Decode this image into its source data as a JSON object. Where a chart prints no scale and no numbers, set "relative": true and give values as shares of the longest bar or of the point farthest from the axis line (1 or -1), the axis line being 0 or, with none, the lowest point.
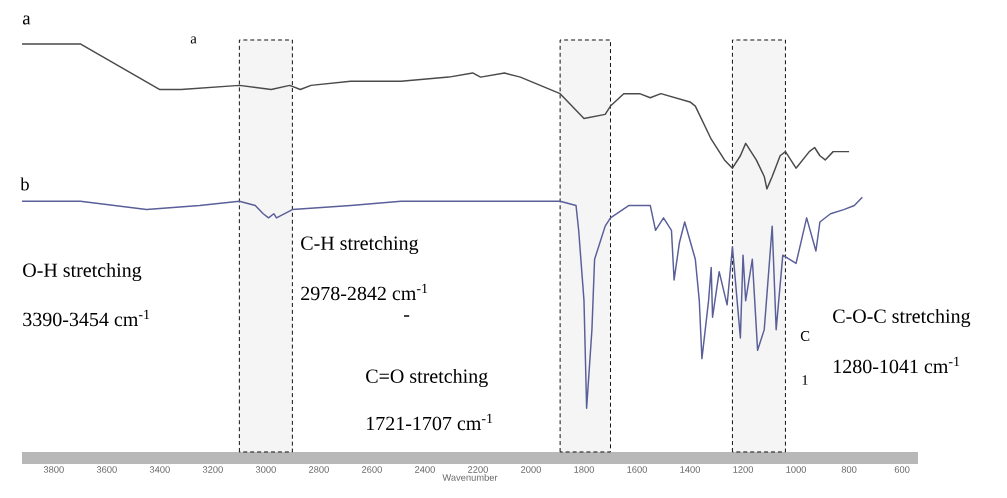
{
  "chart_data": {
    "type": "line",
    "relative": true,
    "xlabel": "Wavenumber",
    "xlim": [
      3920,
      540
    ],
    "xticks": [
      3800,
      3600,
      3400,
      3200,
      3000,
      2800,
      2600,
      2400,
      2200,
      2000,
      1800,
      1600,
      1400,
      1200,
      1000,
      800,
      600
    ],
    "series": [
      {
        "name": "a",
        "color": "#4a4a4a",
        "x": [
          3920,
          3700,
          3400,
          3320,
          3100,
          2980,
          2910,
          2870,
          2830,
          2680,
          2490,
          2310,
          2220,
          2190,
          2100,
          2040,
          1890,
          1800,
          1720,
          1700,
          1650,
          1590,
          1550,
          1510,
          1400,
          1380,
          1320,
          1270,
          1240,
          1210,
          1190,
          1180,
          1150,
          1120,
          1110,
          1090,
          1060,
          1040,
          1020,
          1000,
          950,
          930,
          910,
          890,
          860,
          820,
          800
        ],
        "values": [
          1.0,
          1.0,
          0.89,
          0.89,
          0.9,
          0.89,
          0.9,
          0.89,
          0.9,
          0.91,
          0.91,
          0.92,
          0.93,
          0.92,
          0.93,
          0.92,
          0.88,
          0.82,
          0.83,
          0.85,
          0.88,
          0.88,
          0.87,
          0.88,
          0.86,
          0.85,
          0.77,
          0.72,
          0.7,
          0.73,
          0.76,
          0.75,
          0.72,
          0.68,
          0.65,
          0.68,
          0.73,
          0.74,
          0.72,
          0.7,
          0.74,
          0.75,
          0.73,
          0.72,
          0.74,
          0.74,
          0.74
        ]
      },
      {
        "name": "b",
        "color": "#5a5f99",
        "x": [
          3920,
          3700,
          3450,
          3250,
          3100,
          3040,
          3010,
          2990,
          2970,
          2960,
          2930,
          2900,
          2680,
          2490,
          2270,
          2190,
          2040,
          1890,
          1830,
          1820,
          1800,
          1790,
          1770,
          1760,
          1740,
          1720,
          1700,
          1630,
          1550,
          1530,
          1500,
          1470,
          1460,
          1440,
          1420,
          1380,
          1365,
          1355,
          1330,
          1320,
          1315,
          1290,
          1260,
          1240,
          1210,
          1200,
          1190,
          1165,
          1145,
          1120,
          1090,
          1075,
          1050,
          1000,
          960,
          925,
          910,
          870,
          820,
          780,
          750
        ],
        "values": [
          0.62,
          0.62,
          0.6,
          0.61,
          0.62,
          0.61,
          0.59,
          0.58,
          0.59,
          0.58,
          0.59,
          0.6,
          0.61,
          0.62,
          0.62,
          0.62,
          0.62,
          0.62,
          0.61,
          0.55,
          0.38,
          0.12,
          0.31,
          0.48,
          0.52,
          0.56,
          0.58,
          0.61,
          0.61,
          0.55,
          0.58,
          0.55,
          0.43,
          0.52,
          0.57,
          0.48,
          0.38,
          0.24,
          0.38,
          0.46,
          0.34,
          0.45,
          0.37,
          0.51,
          0.29,
          0.49,
          0.38,
          0.48,
          0.26,
          0.31,
          0.56,
          0.31,
          0.49,
          0.47,
          0.58,
          0.5,
          0.57,
          0.59,
          0.6,
          0.61,
          0.63
        ]
      }
    ],
    "bands": [
      {
        "axis": "x",
        "from": 3100,
        "to": 2900,
        "color": "#000000"
      },
      {
        "axis": "x",
        "from": 1890,
        "to": 1700,
        "color": "#000000"
      },
      {
        "axis": "x",
        "from": 1240,
        "to": 1040,
        "color": "#000000"
      }
    ],
    "annotations": [
      "a",
      "O-H stretching",
      "3390-3454 cm$^{-1}$",
      "C-H stretching",
      "2978-2842 cm$^{-1}$",
      "-",
      "C=O stretching",
      "1721-1707 cm$^{-1}$",
      "C",
      "1",
      "C-O-C stretching",
      "1280-1041 cm$^{-1}$"
    ],
    "legend": false,
    "grid": false
  }
}
